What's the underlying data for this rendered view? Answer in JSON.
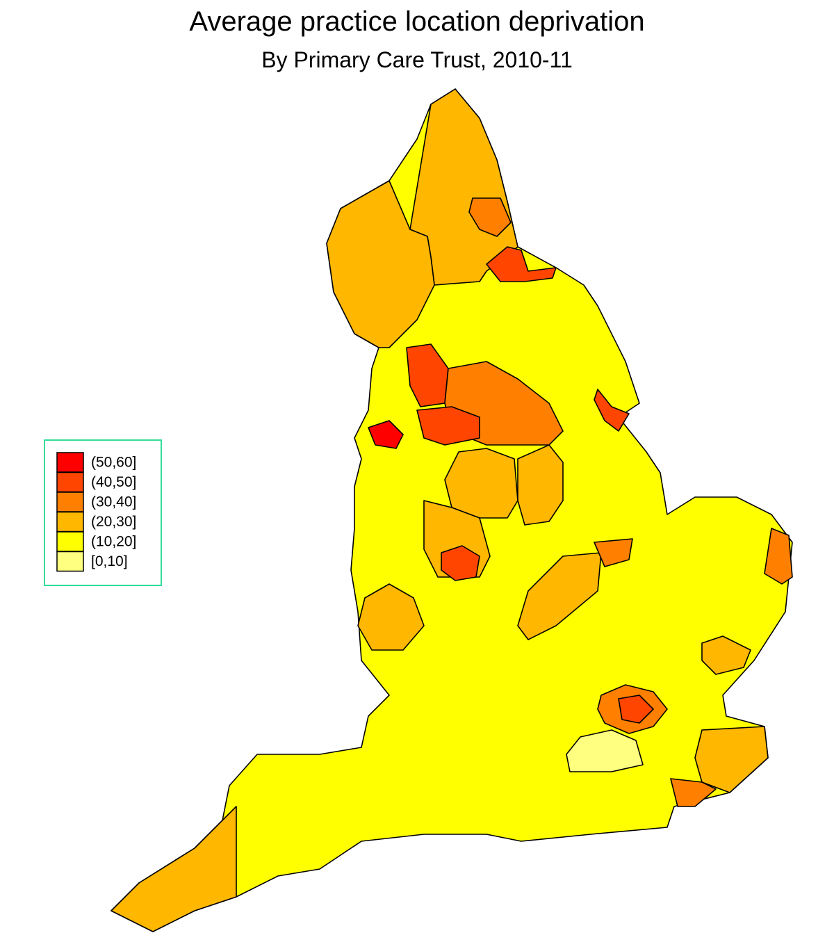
{
  "title": "Average practice location deprivation",
  "subtitle": "By Primary Care Trust, 2010-11",
  "legend": {
    "items": [
      {
        "label": "(50,60]",
        "color": "#ff0000"
      },
      {
        "label": "(40,50]",
        "color": "#ff4500"
      },
      {
        "label": "(30,40]",
        "color": "#ff8000"
      },
      {
        "label": "(20,30]",
        "color": "#ffb700"
      },
      {
        "label": "(10,20]",
        "color": "#ffff00"
      },
      {
        "label": "[0,10]",
        "color": "#ffff80"
      }
    ]
  }
}
